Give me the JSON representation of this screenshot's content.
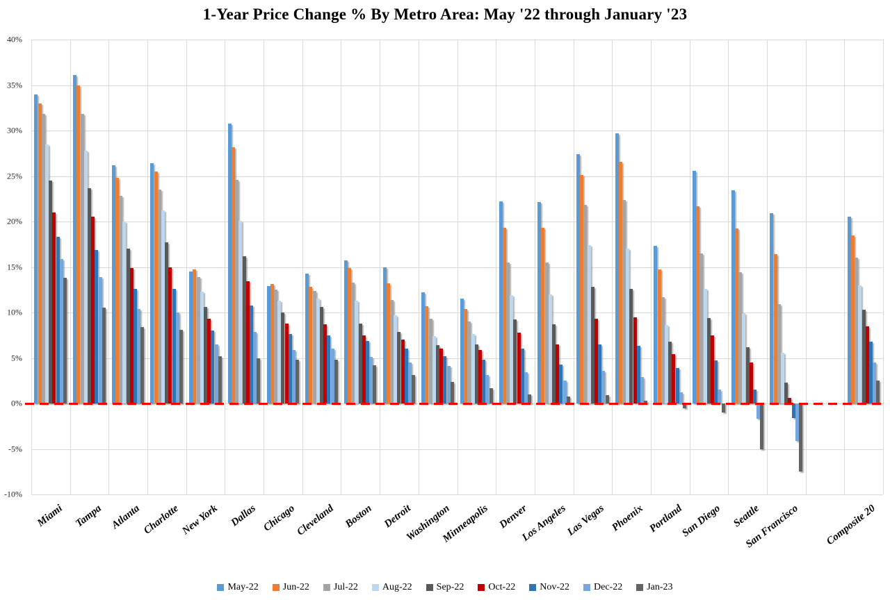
{
  "chart_data": {
    "type": "bar",
    "title": "1-Year Price Change % By Metro Area: May '22 through January '23",
    "categories": [
      "Miami",
      "Tampa",
      "Atlanta",
      "Charlotte",
      "New York",
      "Dallas",
      "Chicago",
      "Cleveland",
      "Boston",
      "Detroit",
      "Washington",
      "Minneapolis",
      "Denver",
      "Los Angeles",
      "Las Vegas",
      "Phoenix",
      "Portland",
      "San Diego",
      "Seattle",
      "San Francisco",
      "Composite 20"
    ],
    "series": [
      {
        "name": "May-22",
        "color": "#5B9BD5",
        "values": [
          34.0,
          36.1,
          26.2,
          26.4,
          14.5,
          30.8,
          12.9,
          14.3,
          15.7,
          15.0,
          12.2,
          11.5,
          22.2,
          22.1,
          27.4,
          29.7,
          17.3,
          25.6,
          23.4,
          20.9,
          20.5
        ]
      },
      {
        "name": "Jun-22",
        "color": "#ED7D31",
        "values": [
          33.0,
          35.0,
          24.8,
          25.5,
          14.7,
          28.2,
          13.1,
          12.8,
          14.9,
          13.2,
          10.7,
          10.4,
          19.3,
          19.3,
          25.1,
          26.6,
          14.7,
          21.7,
          19.2,
          16.4,
          18.5
        ]
      },
      {
        "name": "Jul-22",
        "color": "#A5A5A5",
        "values": [
          31.8,
          31.8,
          22.8,
          23.5,
          13.9,
          24.6,
          12.5,
          12.4,
          13.3,
          11.4,
          9.3,
          9.0,
          15.5,
          15.5,
          21.8,
          22.4,
          11.7,
          16.5,
          14.4,
          10.9,
          16.0
        ]
      },
      {
        "name": "Aug-22",
        "color": "#BDD7EE",
        "values": [
          28.5,
          27.8,
          20.0,
          21.2,
          12.3,
          20.1,
          11.3,
          11.5,
          11.3,
          9.7,
          7.4,
          7.6,
          11.9,
          12.0,
          17.4,
          17.0,
          8.6,
          12.6,
          9.9,
          5.6,
          13.0
        ]
      },
      {
        "name": "Sep-22",
        "color": "#595959",
        "values": [
          24.5,
          23.7,
          17.0,
          17.7,
          10.6,
          16.2,
          10.0,
          10.6,
          8.8,
          7.9,
          6.4,
          6.5,
          9.2,
          8.7,
          12.8,
          12.6,
          6.8,
          9.4,
          6.2,
          2.3,
          10.3
        ]
      },
      {
        "name": "Oct-22",
        "color": "#C00000",
        "values": [
          21.0,
          20.5,
          14.9,
          15.0,
          9.3,
          13.4,
          8.8,
          8.7,
          7.5,
          7.0,
          6.0,
          5.9,
          7.8,
          6.5,
          9.3,
          9.5,
          5.4,
          7.5,
          4.5,
          0.6,
          8.5
        ]
      },
      {
        "name": "Nov-22",
        "color": "#2E75B6",
        "values": [
          18.3,
          16.9,
          12.6,
          12.6,
          8.0,
          10.8,
          7.6,
          7.5,
          6.9,
          6.0,
          5.2,
          4.8,
          6.0,
          4.3,
          6.5,
          6.3,
          3.9,
          4.7,
          1.5,
          -1.6,
          6.8
        ]
      },
      {
        "name": "Dec-22",
        "color": "#74A7DB",
        "values": [
          15.9,
          13.9,
          10.4,
          10.0,
          6.5,
          7.9,
          5.9,
          6.0,
          5.1,
          4.5,
          4.1,
          3.1,
          3.4,
          2.5,
          3.6,
          2.9,
          1.2,
          1.5,
          -1.7,
          -4.1,
          4.5
        ]
      },
      {
        "name": "Jan-23",
        "color": "#636363",
        "values": [
          13.8,
          10.5,
          8.4,
          8.1,
          5.2,
          5.0,
          4.8,
          4.8,
          4.2,
          3.1,
          2.4,
          1.7,
          1.0,
          0.8,
          0.9,
          0.3,
          -0.5,
          -1.0,
          -5.0,
          -7.5,
          2.5
        ]
      }
    ],
    "ylim": [
      -10,
      40
    ],
    "ytick_step": 5,
    "ytick_labels": [
      "40%",
      "35%",
      "30%",
      "25%",
      "20%",
      "15%",
      "10%",
      "5%",
      "0%",
      "-5%",
      "-10%"
    ],
    "grid": true,
    "legend_position": "bottom",
    "zero_line_color": "#FF0000"
  }
}
